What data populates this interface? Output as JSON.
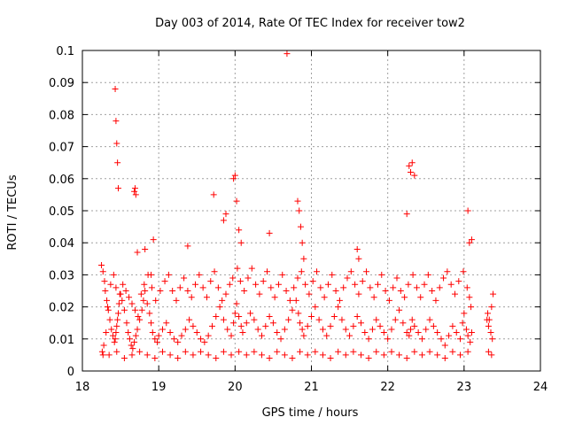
{
  "chart_data": {
    "type": "scatter",
    "title": "Day 003 of 2014, Rate Of TEC Index for receiver tow2",
    "xlabel": "GPS time / hours",
    "ylabel": "ROTI / TECUs",
    "xlim": [
      18,
      24
    ],
    "ylim": [
      0,
      0.1
    ],
    "x_ticks": [
      18,
      19,
      20,
      21,
      22,
      23,
      24
    ],
    "y_ticks": [
      0,
      0.01,
      0.02,
      0.03,
      0.04,
      0.05,
      0.06,
      0.07,
      0.08,
      0.09,
      0.1
    ],
    "x_tick_labels": [
      "18",
      "19",
      "20",
      "21",
      "22",
      "23",
      "24"
    ],
    "y_tick_labels": [
      "0",
      "0.01",
      "0.02",
      "0.03",
      "0.04",
      "0.05",
      "0.06",
      "0.07",
      "0.08",
      "0.09",
      "0.1"
    ],
    "grid": true,
    "marker": "+",
    "marker_color": "#ff0000",
    "series": [
      {
        "name": "ROTI",
        "note": "Dense scatter of many points; representative subset estimated from the figure",
        "x": [
          18.25,
          18.27,
          18.29,
          18.3,
          18.32,
          18.34,
          18.36,
          18.38,
          18.4,
          18.42,
          18.43,
          18.44,
          18.45,
          18.46,
          18.47,
          18.48,
          18.5,
          18.52,
          18.55,
          18.58,
          18.6,
          18.62,
          18.64,
          18.66,
          18.68,
          18.7,
          18.72,
          18.75,
          18.78,
          18.8,
          18.82,
          18.85,
          18.88,
          18.9,
          18.92,
          18.95,
          18.98,
          19.0,
          19.05,
          19.1,
          19.15,
          19.2,
          19.25,
          19.3,
          19.35,
          19.4,
          19.45,
          19.5,
          19.55,
          19.6,
          19.65,
          19.7,
          19.75,
          19.8,
          19.85,
          19.9,
          19.95,
          19.98,
          20.0,
          20.02,
          20.05,
          20.08,
          20.1,
          20.15,
          20.2,
          20.25,
          20.3,
          20.35,
          20.4,
          20.45,
          20.5,
          20.55,
          20.6,
          20.65,
          20.7,
          20.75,
          20.8,
          20.83,
          20.85,
          20.88,
          20.9,
          20.95,
          21.0,
          21.05,
          21.1,
          21.15,
          21.2,
          21.25,
          21.3,
          21.35,
          21.4,
          21.45,
          21.5,
          21.55,
          21.6,
          21.65,
          21.7,
          21.75,
          21.8,
          21.85,
          21.9,
          21.95,
          22.0,
          22.05,
          22.1,
          22.15,
          22.2,
          22.25,
          22.28,
          22.3,
          22.32,
          22.35,
          22.4,
          22.45,
          22.5,
          22.55,
          22.6,
          22.65,
          22.7,
          22.75,
          22.8,
          22.85,
          22.9,
          22.95,
          22.98,
          23.0,
          23.03,
          23.05,
          23.08,
          23.1,
          23.3,
          23.32,
          23.35,
          23.37,
          18.26,
          18.28,
          18.31,
          18.33,
          18.37,
          18.41,
          18.44,
          18.49,
          18.53,
          18.57,
          18.61,
          18.65,
          18.69,
          18.73,
          18.77,
          18.81,
          18.86,
          18.91,
          18.96,
          19.02,
          19.08,
          19.13,
          19.18,
          19.23,
          19.28,
          19.33,
          19.38,
          19.43,
          19.48,
          19.53,
          19.58,
          19.63,
          19.68,
          19.73,
          19.78,
          19.83,
          19.88,
          19.93,
          19.97,
          20.03,
          20.07,
          20.12,
          20.17,
          20.22,
          20.27,
          20.32,
          20.37,
          20.42,
          20.47,
          20.52,
          20.57,
          20.62,
          20.67,
          20.72,
          20.77,
          20.82,
          20.87,
          20.92,
          20.97,
          21.02,
          21.07,
          21.12,
          21.17,
          21.22,
          21.27,
          21.32,
          21.37,
          21.42,
          21.47,
          21.52,
          21.57,
          21.62,
          21.67,
          21.72,
          21.77,
          21.82,
          21.87,
          21.92,
          21.97,
          22.02,
          22.07,
          22.12,
          22.17,
          22.22,
          22.27,
          22.33,
          22.38,
          22.43,
          22.48,
          22.53,
          22.58,
          22.63,
          22.68,
          22.73,
          22.78,
          22.83,
          22.88,
          22.93,
          22.99,
          23.04,
          23.07,
          23.09,
          23.31,
          23.33,
          23.36,
          23.38,
          18.27,
          18.35,
          18.45,
          18.55,
          18.65,
          18.75,
          18.85,
          18.95,
          19.05,
          19.15,
          19.25,
          19.35,
          19.45,
          19.55,
          19.65,
          19.75,
          19.85,
          19.95,
          20.05,
          20.15,
          20.25,
          20.35,
          20.45,
          20.55,
          20.65,
          20.75,
          20.85,
          20.95,
          21.05,
          21.15,
          21.25,
          21.35,
          21.45,
          21.55,
          21.65,
          21.75,
          21.85,
          21.95,
          22.05,
          22.15,
          22.25,
          22.35,
          22.45,
          22.55,
          22.65,
          22.75,
          22.85,
          22.95,
          23.05,
          23.32,
          23.36,
          18.43,
          18.44,
          18.45,
          18.46,
          18.47,
          18.68,
          18.69,
          18.7,
          18.72,
          18.82,
          18.9,
          18.93,
          19.38,
          19.72,
          19.85,
          19.88,
          19.98,
          20.0,
          20.02,
          20.05,
          20.08,
          20.45,
          20.68,
          20.82,
          20.84,
          20.86,
          20.88,
          20.9,
          21.6,
          21.62,
          22.25,
          22.28,
          22.3,
          22.32,
          22.35,
          23.05,
          23.07,
          23.1
        ],
        "y": [
          0.033,
          0.031,
          0.028,
          0.025,
          0.022,
          0.019,
          0.016,
          0.013,
          0.011,
          0.009,
          0.01,
          0.012,
          0.014,
          0.016,
          0.018,
          0.021,
          0.024,
          0.022,
          0.019,
          0.015,
          0.012,
          0.01,
          0.008,
          0.007,
          0.009,
          0.011,
          0.013,
          0.016,
          0.019,
          0.022,
          0.025,
          0.021,
          0.018,
          0.015,
          0.012,
          0.01,
          0.009,
          0.011,
          0.013,
          0.015,
          0.012,
          0.01,
          0.009,
          0.011,
          0.013,
          0.016,
          0.014,
          0.012,
          0.01,
          0.009,
          0.011,
          0.014,
          0.017,
          0.02,
          0.016,
          0.013,
          0.011,
          0.015,
          0.018,
          0.021,
          0.017,
          0.014,
          0.012,
          0.015,
          0.018,
          0.016,
          0.013,
          0.011,
          0.014,
          0.017,
          0.015,
          0.012,
          0.01,
          0.013,
          0.016,
          0.019,
          0.022,
          0.018,
          0.015,
          0.013,
          0.011,
          0.014,
          0.017,
          0.02,
          0.016,
          0.013,
          0.011,
          0.014,
          0.017,
          0.02,
          0.016,
          0.013,
          0.011,
          0.014,
          0.017,
          0.015,
          0.012,
          0.01,
          0.013,
          0.016,
          0.014,
          0.012,
          0.01,
          0.013,
          0.016,
          0.019,
          0.015,
          0.012,
          0.011,
          0.013,
          0.016,
          0.014,
          0.012,
          0.01,
          0.013,
          0.016,
          0.014,
          0.012,
          0.01,
          0.008,
          0.011,
          0.014,
          0.012,
          0.01,
          0.015,
          0.018,
          0.013,
          0.011,
          0.009,
          0.012,
          0.016,
          0.014,
          0.012,
          0.01,
          0.006,
          0.008,
          0.012,
          0.02,
          0.027,
          0.03,
          0.026,
          0.024,
          0.027,
          0.025,
          0.023,
          0.021,
          0.019,
          0.017,
          0.024,
          0.027,
          0.03,
          0.026,
          0.022,
          0.025,
          0.028,
          0.03,
          0.025,
          0.022,
          0.026,
          0.029,
          0.025,
          0.023,
          0.027,
          0.03,
          0.026,
          0.023,
          0.028,
          0.031,
          0.026,
          0.022,
          0.024,
          0.027,
          0.029,
          0.032,
          0.028,
          0.025,
          0.029,
          0.032,
          0.027,
          0.024,
          0.028,
          0.031,
          0.026,
          0.023,
          0.027,
          0.03,
          0.025,
          0.022,
          0.026,
          0.029,
          0.031,
          0.027,
          0.024,
          0.028,
          0.031,
          0.026,
          0.023,
          0.027,
          0.03,
          0.025,
          0.022,
          0.026,
          0.029,
          0.031,
          0.027,
          0.024,
          0.028,
          0.031,
          0.026,
          0.023,
          0.027,
          0.03,
          0.025,
          0.022,
          0.026,
          0.029,
          0.025,
          0.023,
          0.027,
          0.03,
          0.026,
          0.023,
          0.027,
          0.03,
          0.025,
          0.022,
          0.026,
          0.029,
          0.031,
          0.027,
          0.024,
          0.028,
          0.031,
          0.026,
          0.023,
          0.02,
          0.018,
          0.016,
          0.02,
          0.024,
          0.005,
          0.005,
          0.006,
          0.004,
          0.005,
          0.006,
          0.005,
          0.004,
          0.006,
          0.005,
          0.004,
          0.006,
          0.005,
          0.006,
          0.005,
          0.004,
          0.006,
          0.005,
          0.006,
          0.005,
          0.006,
          0.005,
          0.004,
          0.006,
          0.005,
          0.004,
          0.006,
          0.005,
          0.006,
          0.005,
          0.004,
          0.006,
          0.005,
          0.006,
          0.005,
          0.004,
          0.006,
          0.005,
          0.006,
          0.005,
          0.004,
          0.006,
          0.005,
          0.006,
          0.005,
          0.004,
          0.006,
          0.005,
          0.006,
          0.006,
          0.005,
          0.088,
          0.078,
          0.071,
          0.065,
          0.057,
          0.056,
          0.057,
          0.055,
          0.037,
          0.038,
          0.03,
          0.041,
          0.039,
          0.055,
          0.047,
          0.049,
          0.06,
          0.061,
          0.053,
          0.044,
          0.04,
          0.043,
          0.099,
          0.053,
          0.05,
          0.045,
          0.04,
          0.035,
          0.038,
          0.035,
          0.049,
          0.064,
          0.062,
          0.065,
          0.061,
          0.05,
          0.04,
          0.041
        ]
      }
    ]
  }
}
